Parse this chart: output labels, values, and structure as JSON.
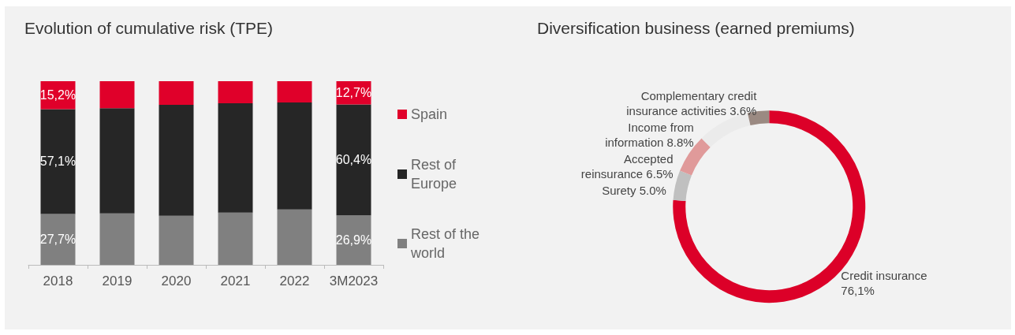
{
  "chart_data": [
    {
      "type": "bar",
      "title": "Evolution of cumulative risk (TPE)",
      "categories": [
        "2018",
        "2019",
        "2020",
        "2021",
        "2022",
        "3M2023"
      ],
      "stacked": true,
      "ylim": [
        0,
        100
      ],
      "legend": "right",
      "series": [
        {
          "name": "Rest of the world",
          "color": "#808080",
          "values": [
            27.7,
            28.0,
            26.7,
            28.4,
            30.2,
            26.9
          ],
          "value_labels": [
            "27,7%",
            null,
            null,
            null,
            null,
            "26,9%"
          ]
        },
        {
          "name": "Rest of Europe",
          "color": "#262626",
          "values": [
            57.1,
            57.3,
            60.4,
            59.6,
            58.2,
            60.4
          ],
          "value_labels": [
            "57,1%",
            null,
            null,
            null,
            null,
            "60,4%"
          ]
        },
        {
          "name": "Spain",
          "color": "#e0002a",
          "values": [
            15.2,
            14.7,
            12.9,
            12.0,
            11.6,
            12.7
          ],
          "value_labels": [
            "15,2%",
            null,
            null,
            null,
            null,
            "12,7%"
          ]
        }
      ]
    },
    {
      "type": "donut",
      "title": "Diversification business (earned premiums)",
      "categories": [
        "Credit insurance",
        "Surety",
        "Accepted reinsurance",
        "Income from information",
        "Complementary credit insurance activities"
      ],
      "values": [
        76.1,
        5.0,
        6.5,
        8.8,
        3.6
      ],
      "value_labels": [
        "76,1%",
        "5.0%",
        "6.5%",
        "8.8%",
        "3.6%"
      ],
      "colors": [
        "#dc0028",
        "#c0c0c0",
        "#e09a9a",
        "#ebebeb",
        "#9b8a82"
      ]
    }
  ]
}
